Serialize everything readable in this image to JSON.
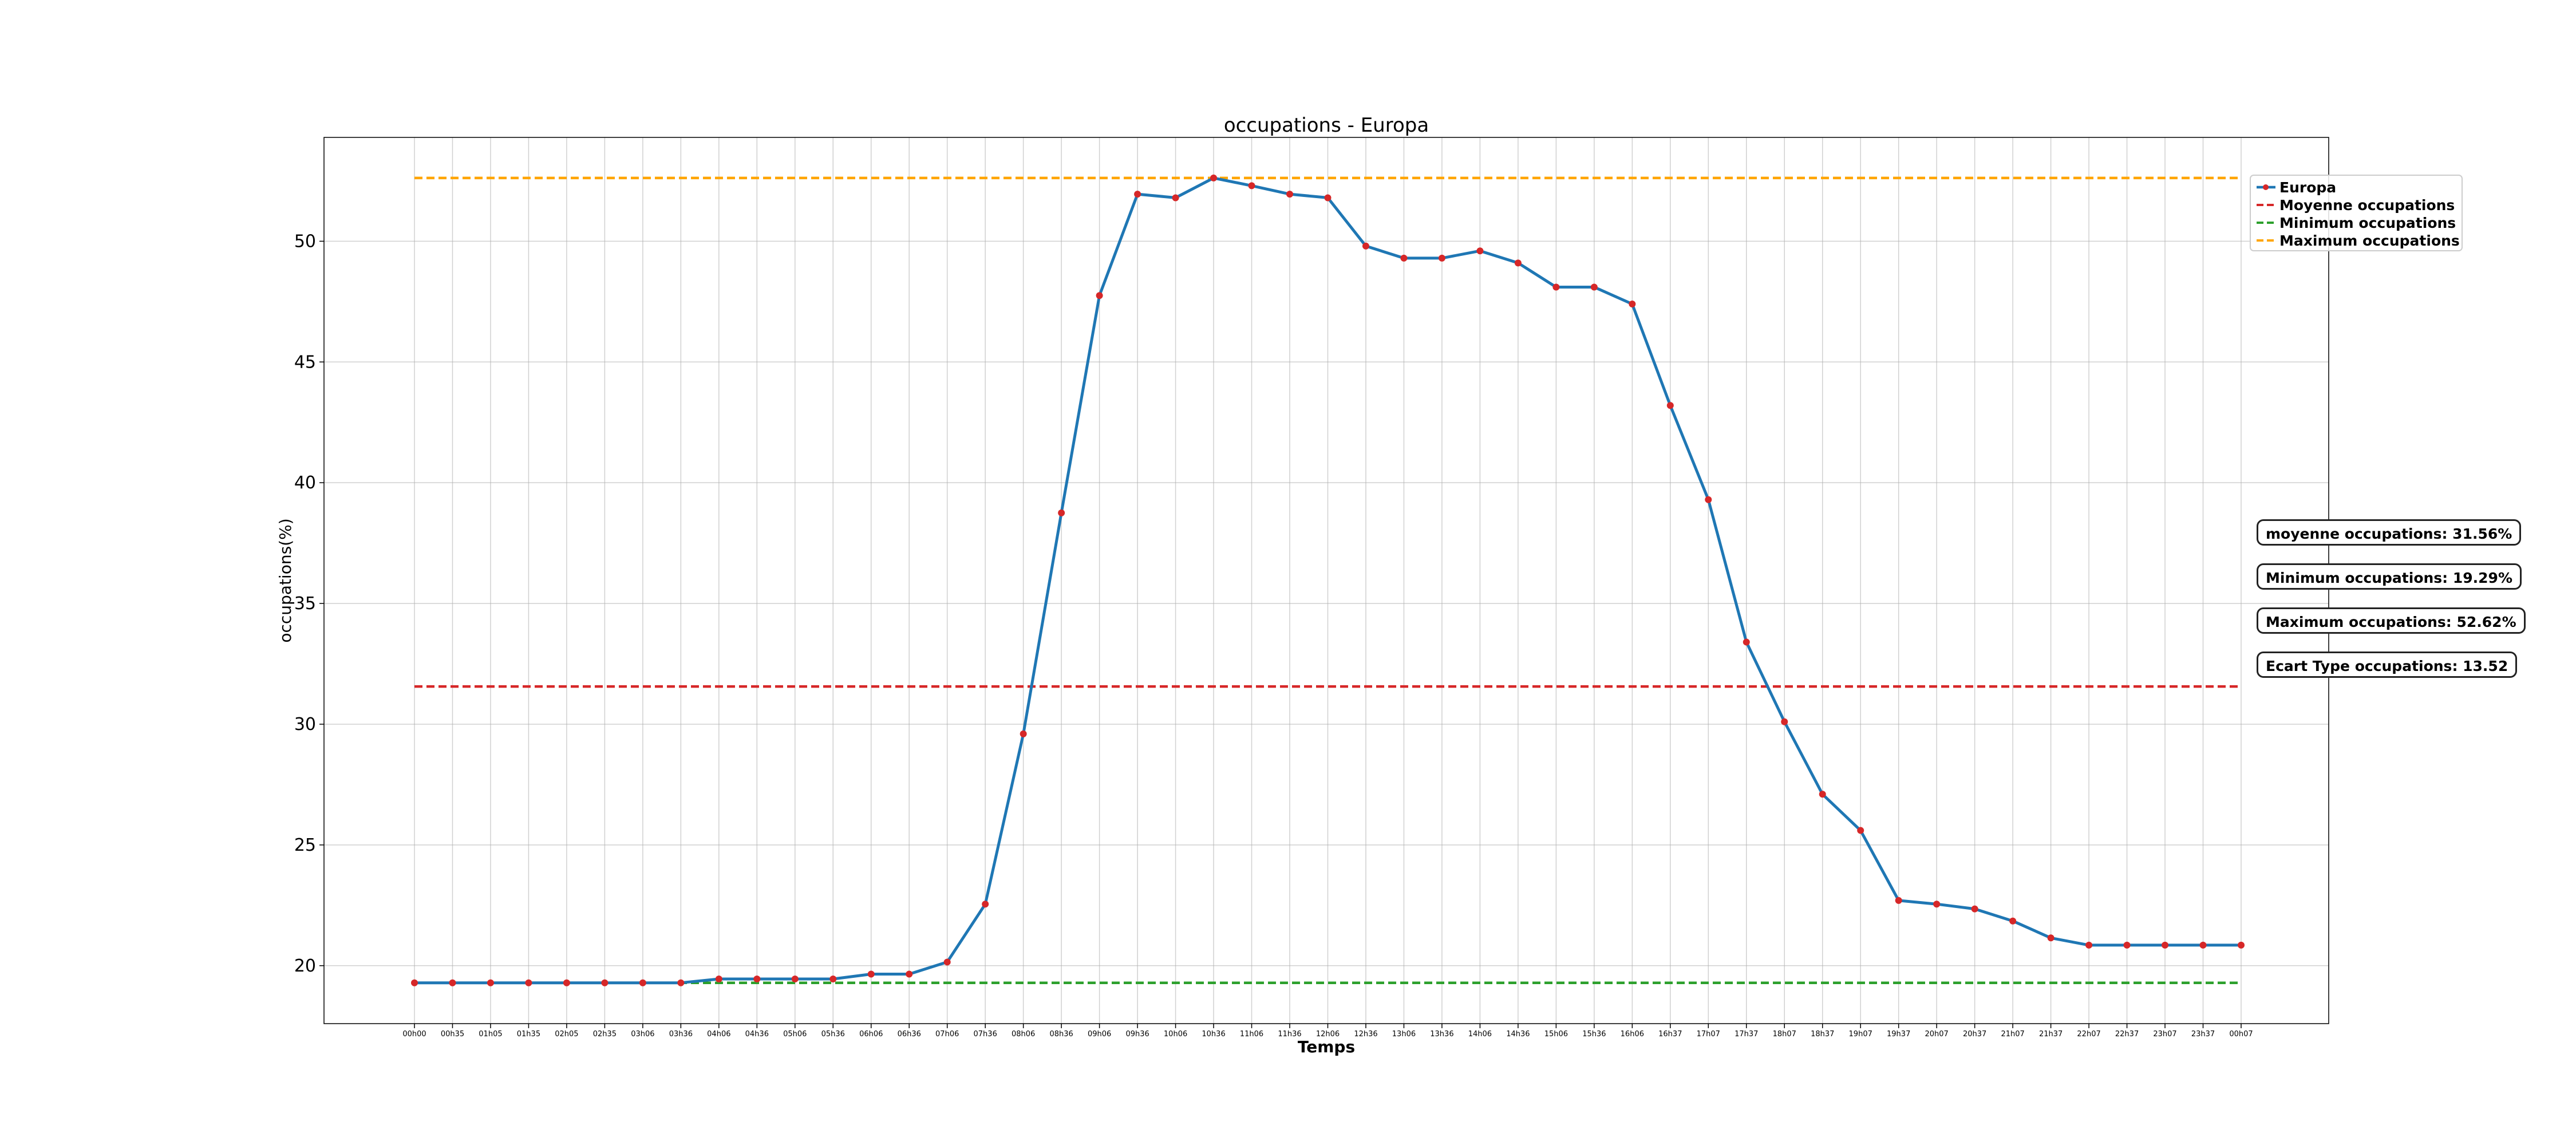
{
  "chart_data": {
    "type": "line",
    "title": "occupations - Europa",
    "xlabel": "Temps",
    "ylabel": "occupations(%)",
    "ylim": [
      17.6,
      54.3
    ],
    "yticks": [
      20,
      25,
      30,
      35,
      40,
      45,
      50
    ],
    "grid": true,
    "legend_position": "top-right",
    "categories": [
      "00h00",
      "00h35",
      "01h05",
      "01h35",
      "02h05",
      "02h35",
      "03h06",
      "03h36",
      "04h06",
      "04h36",
      "05h06",
      "05h36",
      "06h06",
      "06h36",
      "07h06",
      "07h36",
      "08h06",
      "08h36",
      "09h06",
      "09h36",
      "10h06",
      "10h36",
      "11h06",
      "11h36",
      "12h06",
      "12h36",
      "13h06",
      "13h36",
      "14h06",
      "14h36",
      "15h06",
      "15h36",
      "16h06",
      "16h37",
      "17h07",
      "17h37",
      "18h07",
      "18h37",
      "19h07",
      "19h37",
      "20h07",
      "20h37",
      "21h07",
      "21h37",
      "22h07",
      "22h37",
      "23h07",
      "23h37",
      "00h07"
    ],
    "series": [
      {
        "name": "Europa",
        "color": "#1f77b4",
        "marker_color": "#d62728",
        "values": [
          19.29,
          19.29,
          19.29,
          19.29,
          19.29,
          19.29,
          19.29,
          19.29,
          19.45,
          19.45,
          19.45,
          19.45,
          19.65,
          19.65,
          20.15,
          22.55,
          29.6,
          38.75,
          47.75,
          51.95,
          51.8,
          52.62,
          52.3,
          51.95,
          51.8,
          49.8,
          49.3,
          49.3,
          49.6,
          49.1,
          48.1,
          48.1,
          47.4,
          43.2,
          39.3,
          33.4,
          30.1,
          27.1,
          25.6,
          22.7,
          22.55,
          22.35,
          21.85,
          21.15,
          20.85,
          20.85,
          20.85,
          20.85,
          20.85
        ]
      }
    ],
    "reference_lines": [
      {
        "name": "Moyenne occupations",
        "value": 31.56,
        "color": "#d62728"
      },
      {
        "name": "Minimum occupations",
        "value": 19.29,
        "color": "#2ca02c"
      },
      {
        "name": "Maximum occupations",
        "value": 52.62,
        "color": "#ffa500"
      }
    ],
    "annotations": [
      "moyenne occupations: 31.56%",
      "Minimum occupations: 19.29%",
      "Maximum occupations: 52.62%",
      "Ecart Type occupations: 13.52"
    ]
  }
}
